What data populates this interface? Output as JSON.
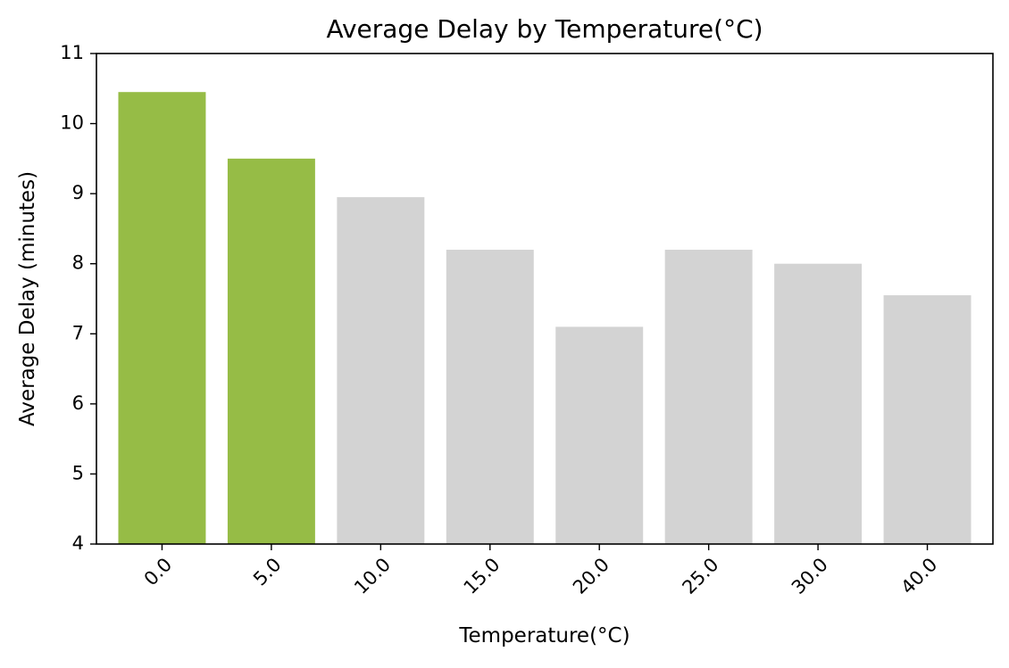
{
  "chart_data": {
    "type": "bar",
    "title": "Average Delay by Temperature(°C)",
    "xlabel": "Temperature(°C)",
    "ylabel": "Average Delay (minutes)",
    "categories": [
      "0.0",
      "5.0",
      "10.0",
      "15.0",
      "20.0",
      "25.0",
      "30.0",
      "40.0"
    ],
    "values": [
      10.45,
      9.5,
      8.95,
      8.2,
      7.1,
      8.2,
      8.0,
      7.55
    ],
    "highlighted": [
      true,
      true,
      false,
      false,
      false,
      false,
      false,
      false
    ],
    "ylim": [
      4,
      11
    ],
    "yticks": [
      "4",
      "5",
      "6",
      "7",
      "8",
      "9",
      "10",
      "11"
    ],
    "xtick_rotation_deg": 45,
    "grid": false,
    "legend": "none",
    "colors": {
      "highlight": "#96bc46",
      "default": "#d3d3d3",
      "axis": "#000000"
    }
  }
}
